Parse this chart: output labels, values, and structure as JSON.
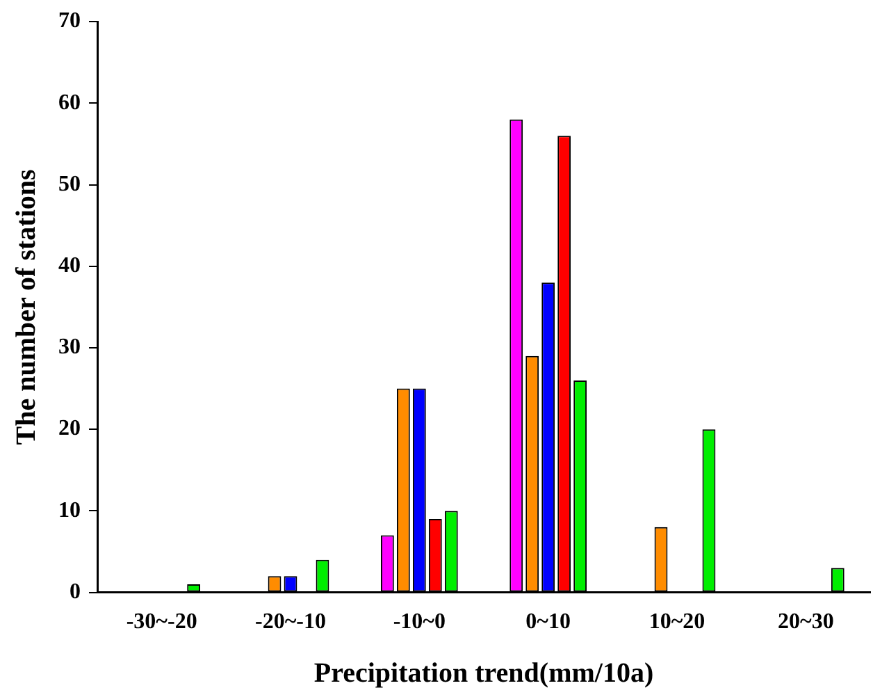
{
  "chart_data": {
    "type": "bar",
    "xlabel": "Precipitation trend(mm/10a)",
    "ylabel": "The number of stations",
    "categories": [
      "-30~-20",
      "-20~-10",
      "-10~0",
      "0~10",
      "10~20",
      "20~30"
    ],
    "series": [
      {
        "color": "#ff00ff",
        "values": [
          0,
          0,
          7,
          58,
          0,
          0
        ]
      },
      {
        "color": "#ff8c00",
        "values": [
          0,
          2,
          25,
          29,
          8,
          0
        ]
      },
      {
        "color": "#0000ff",
        "values": [
          0,
          2,
          25,
          38,
          0,
          0
        ]
      },
      {
        "color": "#ff0000",
        "values": [
          0,
          0,
          9,
          56,
          0,
          0
        ]
      },
      {
        "color": "#00ee00",
        "values": [
          1,
          4,
          10,
          26,
          20,
          3
        ]
      }
    ],
    "ylim": [
      0,
      70
    ],
    "yticks": [
      0,
      10,
      20,
      30,
      40,
      50,
      60,
      70
    ],
    "grid": false,
    "legend": false
  }
}
